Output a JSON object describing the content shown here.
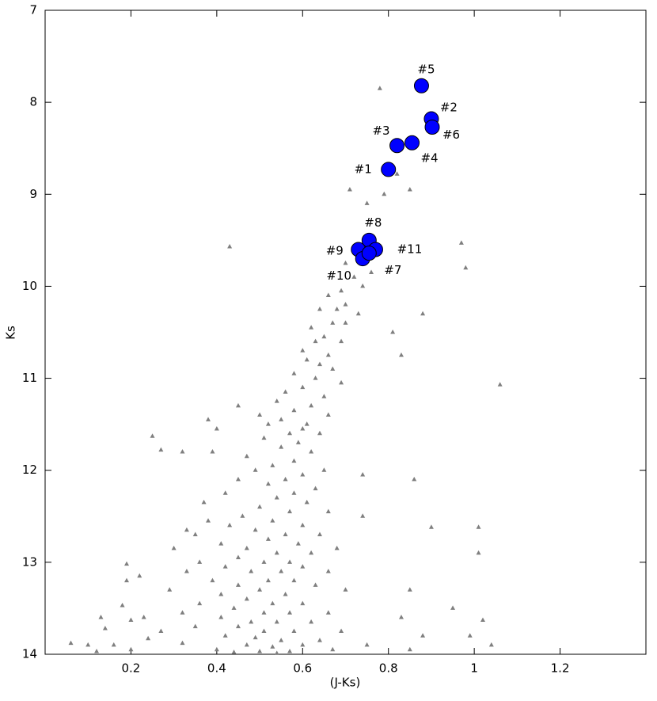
{
  "chart_data": {
    "type": "scatter",
    "x_label": "(J-Ks)",
    "y_label": "Ks",
    "xlim": [
      0,
      1.4
    ],
    "ylim": [
      14,
      7
    ],
    "xticks": [
      0.2,
      0.4,
      0.6,
      0.8,
      1.0,
      1.2
    ],
    "yticks": [
      7,
      8,
      9,
      10,
      11,
      12,
      13,
      14
    ],
    "color": "#7f7f7f",
    "x": [
      0.78,
      0.91,
      0.71,
      0.82,
      0.85,
      0.79,
      0.75,
      0.43,
      0.97,
      0.98,
      0.76,
      0.7,
      0.72,
      0.74,
      0.69,
      0.66,
      0.7,
      0.68,
      0.64,
      0.73,
      0.88,
      0.7,
      0.67,
      0.62,
      0.81,
      0.65,
      0.69,
      0.63,
      0.6,
      0.66,
      0.83,
      0.61,
      0.64,
      0.67,
      0.58,
      0.63,
      0.69,
      1.06,
      0.6,
      0.56,
      0.65,
      0.54,
      0.62,
      0.45,
      0.58,
      0.5,
      0.66,
      0.55,
      0.61,
      0.38,
      0.52,
      0.6,
      0.4,
      0.57,
      0.64,
      0.25,
      0.51,
      0.59,
      0.27,
      0.32,
      0.39,
      0.55,
      0.62,
      0.47,
      0.58,
      0.53,
      0.65,
      0.49,
      0.6,
      0.56,
      0.45,
      0.74,
      0.52,
      0.63,
      0.58,
      0.86,
      0.42,
      0.54,
      0.61,
      0.37,
      0.5,
      0.57,
      0.66,
      0.46,
      0.74,
      0.53,
      0.6,
      0.38,
      0.43,
      0.49,
      0.56,
      0.64,
      0.33,
      0.35,
      0.9,
      1.01,
      0.52,
      0.41,
      0.59,
      0.47,
      0.54,
      0.3,
      0.62,
      0.68,
      1.01,
      0.45,
      0.51,
      0.57,
      0.19,
      0.36,
      0.42,
      0.6,
      0.48,
      0.55,
      0.66,
      0.33,
      0.22,
      0.19,
      0.52,
      0.39,
      0.58,
      0.45,
      0.63,
      0.29,
      0.5,
      0.56,
      0.41,
      0.7,
      0.85,
      0.47,
      0.53,
      0.36,
      0.6,
      0.18,
      0.44,
      0.51,
      0.57,
      0.32,
      0.66,
      0.95,
      0.23,
      0.41,
      0.48,
      0.54,
      0.13,
      0.62,
      0.83,
      0.2,
      1.02,
      0.35,
      0.45,
      0.51,
      0.58,
      0.14,
      0.27,
      0.69,
      0.88,
      0.42,
      0.49,
      0.55,
      0.24,
      0.99,
      0.64,
      0.06,
      0.1,
      0.16,
      0.32,
      0.47,
      0.53,
      0.6,
      0.75,
      1.04,
      0.4,
      0.5,
      0.57,
      0.2,
      0.12,
      0.67,
      0.85,
      0.44,
      0.54
    ],
    "y": [
      7.85,
      8.15,
      8.95,
      8.78,
      8.95,
      9.0,
      9.1,
      9.57,
      9.53,
      9.8,
      9.85,
      9.75,
      9.9,
      10.0,
      10.05,
      10.1,
      10.2,
      10.25,
      10.25,
      10.3,
      10.3,
      10.4,
      10.4,
      10.45,
      10.5,
      10.55,
      10.6,
      10.6,
      10.7,
      10.75,
      10.75,
      10.8,
      10.85,
      10.9,
      10.95,
      11.0,
      11.05,
      11.07,
      11.1,
      11.15,
      11.2,
      11.25,
      11.3,
      11.3,
      11.35,
      11.4,
      11.4,
      11.45,
      11.5,
      11.45,
      11.5,
      11.55,
      11.55,
      11.6,
      11.6,
      11.63,
      11.65,
      11.7,
      11.78,
      11.8,
      11.8,
      11.75,
      11.8,
      11.85,
      11.9,
      11.95,
      12.0,
      12.0,
      12.05,
      12.1,
      12.1,
      12.05,
      12.15,
      12.2,
      12.25,
      12.1,
      12.25,
      12.3,
      12.35,
      12.35,
      12.4,
      12.45,
      12.45,
      12.5,
      12.5,
      12.55,
      12.6,
      12.55,
      12.6,
      12.65,
      12.7,
      12.7,
      12.65,
      12.7,
      12.62,
      12.62,
      12.75,
      12.8,
      12.8,
      12.85,
      12.9,
      12.85,
      12.9,
      12.85,
      12.9,
      12.95,
      13.0,
      13.0,
      13.02,
      13.0,
      13.05,
      13.05,
      13.1,
      13.1,
      13.1,
      13.1,
      13.15,
      13.2,
      13.2,
      13.2,
      13.2,
      13.25,
      13.25,
      13.3,
      13.3,
      13.35,
      13.35,
      13.3,
      13.3,
      13.4,
      13.45,
      13.45,
      13.45,
      13.47,
      13.5,
      13.55,
      13.55,
      13.55,
      13.55,
      13.5,
      13.6,
      13.6,
      13.65,
      13.65,
      13.6,
      13.65,
      13.6,
      13.63,
      13.63,
      13.7,
      13.7,
      13.75,
      13.75,
      13.72,
      13.75,
      13.75,
      13.8,
      13.8,
      13.82,
      13.85,
      13.83,
      13.8,
      13.85,
      13.88,
      13.9,
      13.9,
      13.88,
      13.9,
      13.92,
      13.9,
      13.9,
      13.9,
      13.95,
      13.97,
      13.97,
      13.95,
      13.97,
      13.95,
      13.95,
      13.98,
      13.99
    ],
    "annotated": {
      "color": "#0000ff",
      "labels": [
        "#5",
        "#2",
        "#6",
        "#3",
        "#4",
        "#1",
        "#8",
        "#11",
        "#9",
        "#10",
        "#7"
      ],
      "x": [
        0.877,
        0.9,
        0.902,
        0.82,
        0.855,
        0.8,
        0.755,
        0.77,
        0.73,
        0.74,
        0.755
      ],
      "y": [
        7.82,
        8.18,
        8.27,
        8.47,
        8.44,
        8.73,
        9.5,
        9.6,
        9.6,
        9.7,
        9.64
      ]
    }
  }
}
